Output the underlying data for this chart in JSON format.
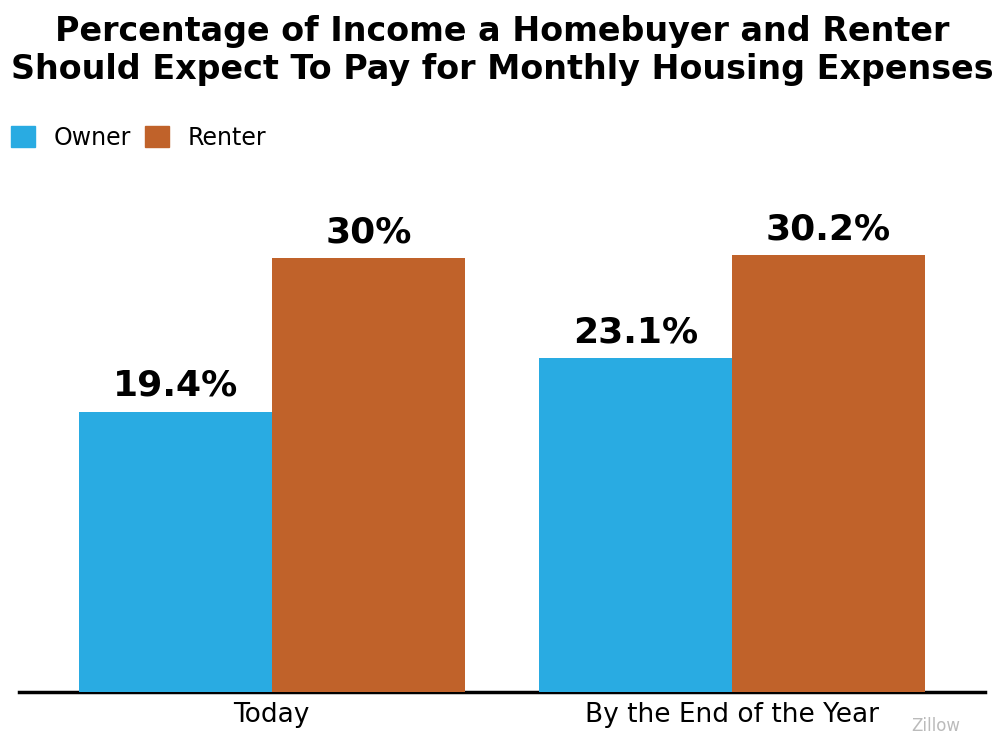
{
  "title_line1": "Percentage of Income a Homebuyer and Renter",
  "title_line2": "Should Expect To Pay for Monthly Housing Expenses",
  "categories": [
    "Today",
    "By the End of the Year"
  ],
  "owner_values": [
    19.4,
    23.1
  ],
  "renter_values": [
    30.0,
    30.2
  ],
  "owner_labels": [
    "19.4%",
    "23.1%"
  ],
  "renter_labels": [
    "30%",
    "30.2%"
  ],
  "owner_color": "#29ABE2",
  "renter_color": "#C0622A",
  "owner_label": "Owner",
  "renter_label": "Renter",
  "bar_width": 0.42,
  "title_fontsize": 24,
  "legend_fontsize": 17,
  "tick_fontsize": 19,
  "annotation_fontsize": 26,
  "background_color": "#FFFFFF",
  "watermark": "Zillow",
  "watermark_color": "#BBBBBB",
  "ylim": [
    0,
    40
  ]
}
